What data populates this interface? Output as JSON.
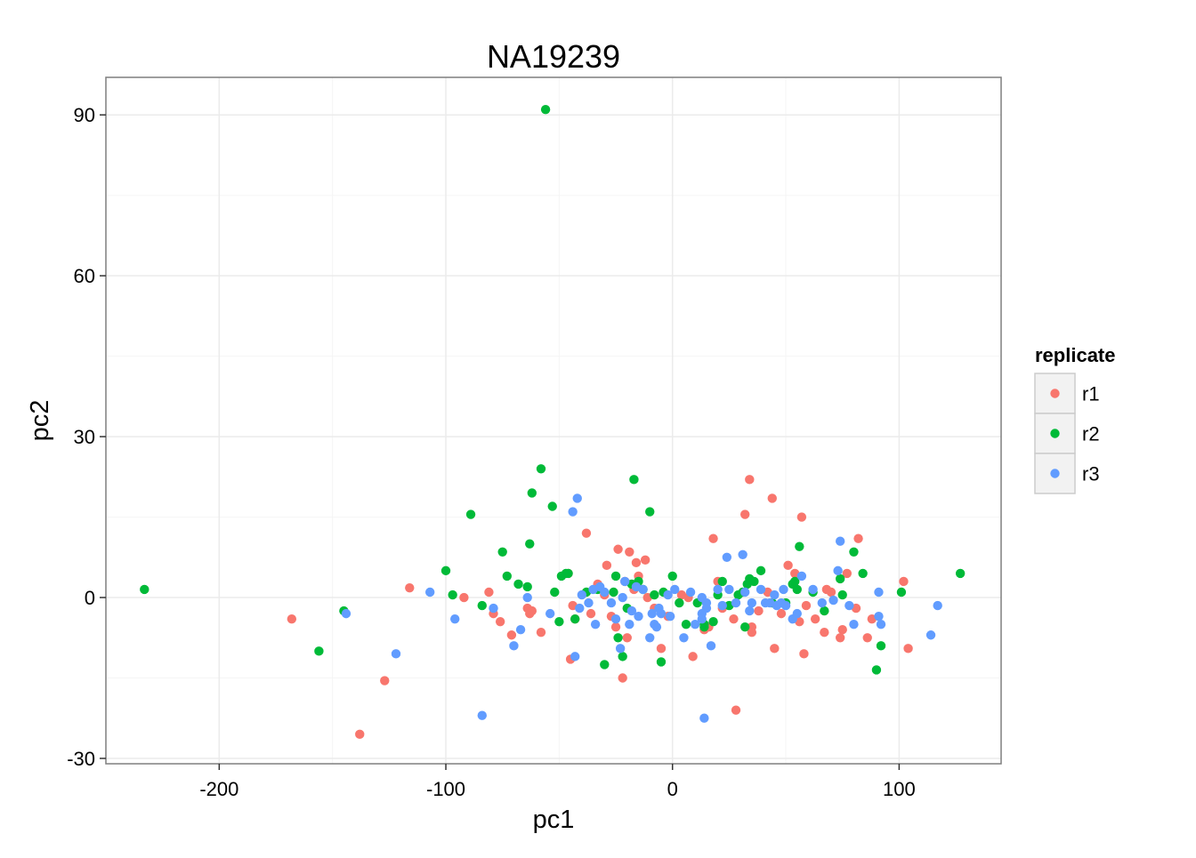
{
  "chart_data": {
    "type": "scatter",
    "title": "NA19239",
    "xlabel": "pc1",
    "ylabel": "pc2",
    "xlim": [
      -250,
      145
    ],
    "ylim": [
      -31,
      97
    ],
    "x_ticks": [
      -200,
      -100,
      0,
      100
    ],
    "y_ticks": [
      -30,
      0,
      30,
      60,
      90
    ],
    "grid": true,
    "legend": {
      "title": "replicate",
      "position": "right",
      "entries": [
        "r1",
        "r2",
        "r3"
      ]
    },
    "series": [
      {
        "name": "r1",
        "color": "#F8766D",
        "points": [
          [
            -168,
            -4
          ],
          [
            -138,
            -25.5
          ],
          [
            -127,
            -15.5
          ],
          [
            -116,
            1.8
          ],
          [
            -92,
            0
          ],
          [
            -81,
            1
          ],
          [
            -79,
            -3
          ],
          [
            -76,
            -4.5
          ],
          [
            -71,
            -7
          ],
          [
            -64,
            -2
          ],
          [
            -63,
            -3
          ],
          [
            -62,
            -2.5
          ],
          [
            -58,
            -6.5
          ],
          [
            -46,
            4.5
          ],
          [
            -45,
            -11.5
          ],
          [
            -44,
            -1.5
          ],
          [
            -43,
            -4
          ],
          [
            -38,
            12
          ],
          [
            -36,
            -3
          ],
          [
            -33,
            2.5
          ],
          [
            -30,
            0.5
          ],
          [
            -29,
            6
          ],
          [
            -27,
            -3.5
          ],
          [
            -25,
            -5.5
          ],
          [
            -24,
            9
          ],
          [
            -22,
            -15
          ],
          [
            -21,
            3
          ],
          [
            -20,
            -7.5
          ],
          [
            -19,
            8.5
          ],
          [
            -17,
            1.5
          ],
          [
            -16,
            6.5
          ],
          [
            -15,
            4
          ],
          [
            -12,
            7
          ],
          [
            -11,
            0
          ],
          [
            -8,
            -2
          ],
          [
            -5,
            -9.5
          ],
          [
            -2,
            -3.5
          ],
          [
            4,
            0.5
          ],
          [
            7,
            0
          ],
          [
            9,
            -11
          ],
          [
            14,
            -6
          ],
          [
            16,
            -5.5
          ],
          [
            18,
            11
          ],
          [
            20,
            3
          ],
          [
            22,
            -2
          ],
          [
            27,
            -4
          ],
          [
            28,
            -21
          ],
          [
            32,
            15.5
          ],
          [
            34,
            22
          ],
          [
            35,
            -6.5
          ],
          [
            35,
            -5.5
          ],
          [
            38,
            -2.5
          ],
          [
            42,
            1
          ],
          [
            44,
            18.5
          ],
          [
            45,
            -9.5
          ],
          [
            48,
            -3
          ],
          [
            51,
            6
          ],
          [
            54,
            4.5
          ],
          [
            56,
            -4.5
          ],
          [
            57,
            15
          ],
          [
            58,
            -10.5
          ],
          [
            59,
            -1.5
          ],
          [
            63,
            -4
          ],
          [
            67,
            -6.5
          ],
          [
            68,
            1.5
          ],
          [
            70,
            1
          ],
          [
            74,
            -7.5
          ],
          [
            75,
            -6
          ],
          [
            77,
            4.5
          ],
          [
            81,
            -2
          ],
          [
            82,
            11
          ],
          [
            86,
            -7.5
          ],
          [
            88,
            -4
          ],
          [
            102,
            3
          ],
          [
            104,
            -9.5
          ]
        ]
      },
      {
        "name": "r2",
        "color": "#00BA38",
        "points": [
          [
            -233,
            1.5
          ],
          [
            -156,
            -10
          ],
          [
            -145,
            -2.5
          ],
          [
            -100,
            5
          ],
          [
            -97,
            0.5
          ],
          [
            -89,
            15.5
          ],
          [
            -84,
            -1.5
          ],
          [
            -75,
            8.5
          ],
          [
            -73,
            4
          ],
          [
            -68,
            2.5
          ],
          [
            -64,
            2
          ],
          [
            -63,
            10
          ],
          [
            -62,
            19.5
          ],
          [
            -58,
            24
          ],
          [
            -56,
            91
          ],
          [
            -53,
            17
          ],
          [
            -52,
            1
          ],
          [
            -50,
            -4.5
          ],
          [
            -49,
            4
          ],
          [
            -47,
            4.5
          ],
          [
            -46,
            4.5
          ],
          [
            -43,
            -4
          ],
          [
            -38,
            1
          ],
          [
            -33,
            1.5
          ],
          [
            -30,
            -12.5
          ],
          [
            -26,
            1
          ],
          [
            -25,
            4
          ],
          [
            -24,
            -7.5
          ],
          [
            -22,
            -11
          ],
          [
            -20,
            -2
          ],
          [
            -18,
            2.5
          ],
          [
            -17,
            22
          ],
          [
            -15,
            3
          ],
          [
            -13,
            1.5
          ],
          [
            -10,
            16
          ],
          [
            -8,
            0.5
          ],
          [
            -5,
            -12
          ],
          [
            -4,
            1
          ],
          [
            0,
            4
          ],
          [
            3,
            -1
          ],
          [
            6,
            -5
          ],
          [
            11,
            -1
          ],
          [
            14,
            -5
          ],
          [
            14,
            -5.5
          ],
          [
            18,
            -4.5
          ],
          [
            20,
            0.5
          ],
          [
            22,
            3
          ],
          [
            25,
            -1.5
          ],
          [
            29,
            0.5
          ],
          [
            31,
            1
          ],
          [
            32,
            -5.5
          ],
          [
            33,
            2.5
          ],
          [
            34,
            3.5
          ],
          [
            36,
            3
          ],
          [
            39,
            5
          ],
          [
            44,
            -1
          ],
          [
            50,
            -1
          ],
          [
            53,
            2.5
          ],
          [
            54,
            3
          ],
          [
            55,
            1.5
          ],
          [
            56,
            9.5
          ],
          [
            62,
            1
          ],
          [
            67,
            -2.5
          ],
          [
            74,
            3.5
          ],
          [
            75,
            0.5
          ],
          [
            80,
            8.5
          ],
          [
            84,
            4.5
          ],
          [
            90,
            -13.5
          ],
          [
            92,
            -9
          ],
          [
            101,
            1
          ],
          [
            127,
            4.5
          ]
        ]
      },
      {
        "name": "r3",
        "color": "#619CFF",
        "points": [
          [
            -144,
            -3
          ],
          [
            -122,
            -10.5
          ],
          [
            -107,
            1
          ],
          [
            -96,
            -4
          ],
          [
            -84,
            -22
          ],
          [
            -79,
            -2
          ],
          [
            -70,
            -9
          ],
          [
            -67,
            -6
          ],
          [
            -64,
            0
          ],
          [
            -54,
            -3
          ],
          [
            -44,
            16
          ],
          [
            -43,
            -11
          ],
          [
            -42,
            18.5
          ],
          [
            -41,
            -2
          ],
          [
            -40,
            0.5
          ],
          [
            -37,
            -1
          ],
          [
            -35,
            1.5
          ],
          [
            -34,
            -5
          ],
          [
            -32,
            2
          ],
          [
            -30,
            1
          ],
          [
            -27,
            -1
          ],
          [
            -25,
            -4
          ],
          [
            -23,
            -9.5
          ],
          [
            -22,
            0
          ],
          [
            -21,
            3
          ],
          [
            -19,
            -5
          ],
          [
            -18,
            -2.5
          ],
          [
            -16,
            2
          ],
          [
            -15,
            -3.5
          ],
          [
            -13,
            1.5
          ],
          [
            -10,
            -7.5
          ],
          [
            -9,
            -3
          ],
          [
            -8,
            -5
          ],
          [
            -7,
            -5.5
          ],
          [
            -6,
            -2
          ],
          [
            -5,
            -3
          ],
          [
            -2,
            0.5
          ],
          [
            -1,
            -3.5
          ],
          [
            1,
            1.5
          ],
          [
            5,
            -7.5
          ],
          [
            8,
            1
          ],
          [
            10,
            -5
          ],
          [
            13,
            0
          ],
          [
            13,
            -3
          ],
          [
            13,
            -4
          ],
          [
            14,
            -22.5
          ],
          [
            15,
            -1
          ],
          [
            15,
            -2
          ],
          [
            17,
            -9
          ],
          [
            20,
            1.5
          ],
          [
            22,
            -1.5
          ],
          [
            24,
            7.5
          ],
          [
            25,
            1.5
          ],
          [
            28,
            -1
          ],
          [
            31,
            8
          ],
          [
            32,
            1
          ],
          [
            34,
            -2.5
          ],
          [
            35,
            -1
          ],
          [
            39,
            1.5
          ],
          [
            41,
            -1
          ],
          [
            43,
            -1
          ],
          [
            45,
            0.5
          ],
          [
            46,
            -1.5
          ],
          [
            48,
            -1
          ],
          [
            49,
            1.5
          ],
          [
            50,
            -1.5
          ],
          [
            53,
            -4
          ],
          [
            55,
            -3
          ],
          [
            57,
            4
          ],
          [
            62,
            1.5
          ],
          [
            66,
            -1
          ],
          [
            71,
            -0.5
          ],
          [
            73,
            5
          ],
          [
            74,
            10.5
          ],
          [
            78,
            -1.5
          ],
          [
            80,
            -5
          ],
          [
            91,
            -3.5
          ],
          [
            91,
            1
          ],
          [
            92,
            -5
          ],
          [
            114,
            -7
          ],
          [
            117,
            -1.5
          ]
        ]
      }
    ]
  }
}
